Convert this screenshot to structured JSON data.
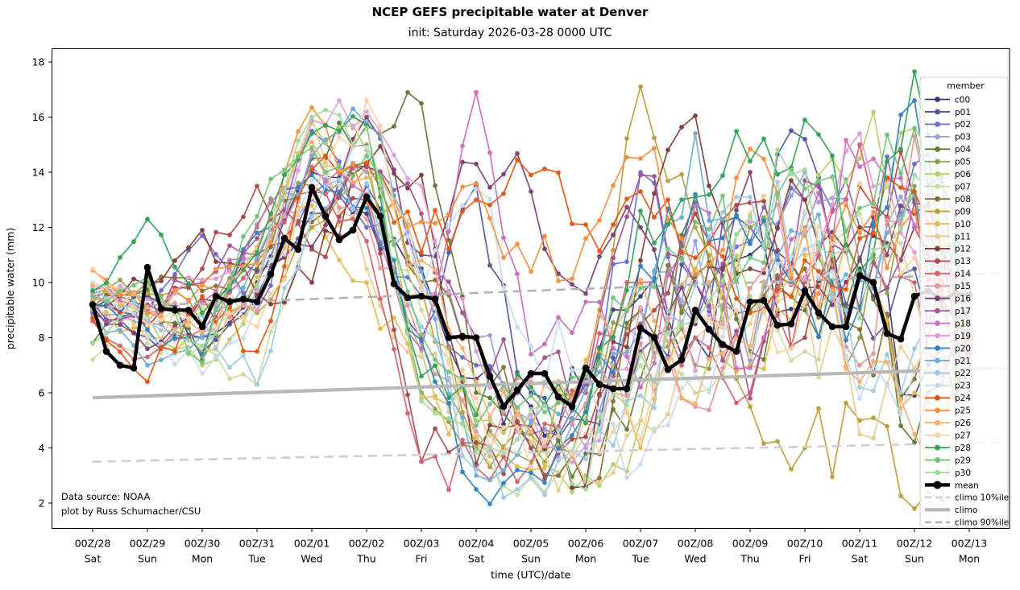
{
  "title": "NCEP GEFS precipitable water at Denver",
  "subtitle": "init: Saturday 2026-03-28 0000 UTC",
  "x_axis": {
    "label": "time (UTC)/date",
    "ticks": [
      {
        "time": "00Z/28",
        "day": "Sat"
      },
      {
        "time": "00Z/29",
        "day": "Sun"
      },
      {
        "time": "00Z/30",
        "day": "Mon"
      },
      {
        "time": "00Z/31",
        "day": "Tue"
      },
      {
        "time": "00Z/01",
        "day": "Wed"
      },
      {
        "time": "00Z/02",
        "day": "Thu"
      },
      {
        "time": "00Z/03",
        "day": "Fri"
      },
      {
        "time": "00Z/04",
        "day": "Sat"
      },
      {
        "time": "00Z/05",
        "day": "Sun"
      },
      {
        "time": "00Z/06",
        "day": "Mon"
      },
      {
        "time": "00Z/07",
        "day": "Tue"
      },
      {
        "time": "00Z/08",
        "day": "Wed"
      },
      {
        "time": "00Z/09",
        "day": "Thu"
      },
      {
        "time": "00Z/10",
        "day": "Fri"
      },
      {
        "time": "00Z/11",
        "day": "Sat"
      },
      {
        "time": "00Z/12",
        "day": "Sun"
      },
      {
        "time": "00Z/13",
        "day": "Mon"
      }
    ]
  },
  "y_axis": {
    "label": "precipitable water (mm)",
    "ticks": [
      2,
      4,
      6,
      8,
      10,
      12,
      14,
      16,
      18
    ]
  },
  "annotations": {
    "line1": "Data source: NOAA",
    "line2": "plot by Russ Schumacher/CSU"
  },
  "legend": {
    "title": "member",
    "mean_label": "mean",
    "climo10_label": "climo 10%ile",
    "climo_label": "climo",
    "climo90_label": "climo 90%ile",
    "mean_color": "#000000",
    "climo10_color": "#cfcfcf",
    "climo_color": "#b8b8b8",
    "climo90_color": "#b3b3b3"
  },
  "chart_data": {
    "type": "line",
    "title": "NCEP GEFS precipitable water at Denver",
    "subtitle": "init: Saturday 2026-03-28 0000 UTC",
    "xlabel": "time (UTC)/date",
    "ylabel": "precipitable water (mm)",
    "ylim": [
      1.1,
      18.5
    ],
    "x_start": "2026-03-28 00 UTC",
    "x_end": "2026-04-13 00 UTC",
    "x_step_hours": 6,
    "grid": false,
    "legend_position": "right",
    "mean_6hourly": [
      9.2,
      7.5,
      7.0,
      6.9,
      10.55,
      9.05,
      9.0,
      9.0,
      8.4,
      9.5,
      9.3,
      9.4,
      9.3,
      10.3,
      11.6,
      11.2,
      13.45,
      12.4,
      11.55,
      11.9,
      13.1,
      12.4,
      9.95,
      9.45,
      9.5,
      9.4,
      8.0,
      8.05,
      8.0,
      6.6,
      5.5,
      6.1,
      6.7,
      6.7,
      5.85,
      5.5,
      6.9,
      6.3,
      6.15,
      6.15,
      8.35,
      8.0,
      6.85,
      7.2,
      9.0,
      8.3,
      7.75,
      7.5,
      9.3,
      9.35,
      8.45,
      8.5,
      9.7,
      8.9,
      8.4,
      8.4,
      10.25,
      10.0,
      8.15,
      7.95,
      9.5,
      9.7,
      9.4,
      9.6,
      9.55
    ],
    "climo_lines": {
      "climo_10th_percentile": {
        "start": 3.5,
        "end": 4.2
      },
      "climo": {
        "start": 5.82,
        "end": 6.9
      },
      "climo_90th_percentile": {
        "start": 9.1,
        "end": 10.35
      }
    },
    "members_daily_00Z": [
      {
        "name": "c00",
        "color": "#393b79",
        "values": [
          9.0,
          9.5,
          8.0,
          10.0,
          14.0,
          12.5,
          10.5,
          6.5,
          5.5,
          6.0,
          9.5,
          8.0,
          11.0,
          9.0,
          10.5,
          5.9,
          8.0
        ]
      },
      {
        "name": "p01",
        "color": "#5254a3",
        "values": [
          9.3,
          8.0,
          7.5,
          9.5,
          12.5,
          13.5,
          8.0,
          13.5,
          6.0,
          5.0,
          7.5,
          10.0,
          12.0,
          15.2,
          9.0,
          10.5,
          7.5
        ]
      },
      {
        "name": "p02",
        "color": "#6b6ecf",
        "values": [
          9.5,
          9.0,
          11.7,
          9.0,
          15.5,
          12.0,
          9.5,
          7.0,
          4.5,
          6.5,
          14.0,
          8.5,
          11.5,
          13.0,
          12.0,
          14.3,
          9.0
        ]
      },
      {
        "name": "p03",
        "color": "#9c9ede",
        "values": [
          8.8,
          8.5,
          8.0,
          11.0,
          13.0,
          14.0,
          10.0,
          8.0,
          5.0,
          4.0,
          8.0,
          11.5,
          7.0,
          14.0,
          10.8,
          12.1,
          8.5
        ]
      },
      {
        "name": "p04",
        "color": "#637939",
        "values": [
          7.8,
          9.7,
          7.2,
          10.5,
          14.5,
          15.7,
          16.5,
          6.0,
          4.2,
          3.8,
          6.5,
          12.9,
          7.5,
          9.0,
          10.9,
          4.2,
          9.7
        ]
      },
      {
        "name": "p05",
        "color": "#8ca252",
        "values": [
          9.6,
          10.0,
          8.5,
          12.0,
          13.5,
          15.0,
          6.0,
          4.0,
          3.5,
          5.5,
          9.0,
          7.0,
          12.0,
          10.0,
          8.0,
          13.5,
          7.0
        ]
      },
      {
        "name": "p06",
        "color": "#b5cf6b",
        "values": [
          9.4,
          8.8,
          7.0,
          9.8,
          15.8,
          14.8,
          7.5,
          5.0,
          4.5,
          3.0,
          5.0,
          10.5,
          9.5,
          12.5,
          14.5,
          15.6,
          8.0
        ]
      },
      {
        "name": "p07",
        "color": "#cedb9c",
        "values": [
          7.2,
          7.8,
          7.7,
          6.3,
          12.0,
          13.0,
          9.0,
          4.3,
          3.0,
          4.5,
          7.0,
          6.0,
          8.5,
          7.5,
          12.5,
          9.5,
          7.0
        ]
      },
      {
        "name": "p08",
        "color": "#8c6d31",
        "values": [
          9.1,
          9.8,
          9.7,
          11.0,
          12.2,
          14.2,
          10.0,
          8.0,
          4.0,
          2.6,
          9.0,
          10.2,
          9.0,
          10.5,
          8.3,
          6.5,
          9.7
        ]
      },
      {
        "name": "p09",
        "color": "#bd9e39",
        "values": [
          9.3,
          9.6,
          9.9,
          8.9,
          12.0,
          14.2,
          9.8,
          4.1,
          4.5,
          6.8,
          17.1,
          12.0,
          5.5,
          4.0,
          5.0,
          1.8,
          4.5
        ]
      },
      {
        "name": "p10",
        "color": "#e7ba52",
        "values": [
          8.9,
          8.2,
          7.5,
          10.2,
          12.8,
          10.0,
          5.8,
          4.4,
          3.2,
          7.2,
          4.0,
          10.5,
          7.0,
          11.0,
          10.3,
          6.0,
          7.0
        ]
      },
      {
        "name": "p11",
        "color": "#e7cb94",
        "values": [
          10.45,
          8.0,
          9.0,
          9.3,
          16.0,
          10.5,
          7.3,
          5.4,
          4.2,
          2.8,
          5.0,
          8.0,
          12.5,
          9.5,
          4.5,
          6.9,
          6.0
        ]
      },
      {
        "name": "p12",
        "color": "#843c39",
        "values": [
          9.2,
          9.9,
          11.9,
          9.6,
          10.0,
          14.3,
          13.9,
          3.4,
          4.8,
          2.6,
          10.8,
          16.05,
          10.5,
          13.0,
          12.0,
          12.0,
          7.5
        ]
      },
      {
        "name": "p13",
        "color": "#ad494a",
        "values": [
          9.0,
          8.4,
          10.5,
          13.5,
          11.2,
          13.0,
          3.5,
          4.2,
          4.0,
          4.4,
          8.5,
          12.5,
          12.9,
          8.0,
          13.5,
          13.0,
          7.0
        ]
      },
      {
        "name": "p14",
        "color": "#d6616b",
        "values": [
          8.6,
          7.3,
          8.3,
          10.8,
          13.3,
          11.5,
          3.5,
          3.3,
          3.4,
          6.0,
          10.0,
          8.0,
          6.0,
          10.0,
          15.0,
          10.0,
          6.0
        ]
      },
      {
        "name": "p15",
        "color": "#e7969c",
        "values": [
          9.35,
          8.6,
          9.2,
          9.0,
          14.8,
          12.3,
          7.8,
          4.6,
          6.4,
          5.6,
          7.8,
          5.5,
          9.8,
          12.0,
          7.0,
          15.3,
          7.6
        ]
      },
      {
        "name": "p16",
        "color": "#7b4173",
        "values": [
          9.15,
          7.6,
          9.4,
          10.4,
          11.3,
          16.0,
          11.0,
          14.3,
          13.3,
          9.6,
          12.0,
          8.5,
          14.0,
          9.8,
          10.8,
          12.5,
          9.0
        ]
      },
      {
        "name": "p17",
        "color": "#a55194",
        "values": [
          8.9,
          9.2,
          10.0,
          11.6,
          13.2,
          14.2,
          12.5,
          8.0,
          6.6,
          6.3,
          13.9,
          10.0,
          5.8,
          13.7,
          9.0,
          12.9,
          8.5
        ]
      },
      {
        "name": "p18",
        "color": "#ce6dbd",
        "values": [
          9.7,
          8.9,
          9.3,
          12.1,
          14.2,
          13.2,
          7.6,
          16.9,
          7.4,
          9.3,
          6.2,
          12.8,
          6.9,
          11.9,
          14.2,
          12.0,
          9.2
        ]
      },
      {
        "name": "p19",
        "color": "#de9ed6",
        "values": [
          9.6,
          9.4,
          10.1,
          9.7,
          15.9,
          16.2,
          13.5,
          7.5,
          5.2,
          4.1,
          9.1,
          6.8,
          12.2,
          10.2,
          15.4,
          11.1,
          8.8
        ]
      },
      {
        "name": "p20",
        "color": "#3182bd",
        "values": [
          9.2,
          8.3,
          7.4,
          11.8,
          13.9,
          12.7,
          7.9,
          2.5,
          3.1,
          5.3,
          10.6,
          13.2,
          11.4,
          9.6,
          9.1,
          16.6,
          8.2
        ]
      },
      {
        "name": "p21",
        "color": "#6baed6",
        "values": [
          9.0,
          7.0,
          8.1,
          10.9,
          14.6,
          15.8,
          10.4,
          3.0,
          4.9,
          6.1,
          8.2,
          15.4,
          7.2,
          11.7,
          10.1,
          13.2,
          9.3
        ]
      },
      {
        "name": "p22",
        "color": "#9ecae1",
        "values": [
          9.8,
          8.6,
          8.8,
          6.3,
          12.4,
          13.6,
          8.4,
          3.2,
          2.9,
          3.6,
          5.9,
          9.9,
          13.1,
          11.2,
          6.2,
          7.6,
          8.4
        ]
      },
      {
        "name": "p23",
        "color": "#c6dbef",
        "values": [
          10.0,
          8.1,
          6.7,
          9.2,
          13.7,
          14.9,
          9.7,
          13.4,
          7.7,
          6.9,
          3.4,
          6.6,
          9.4,
          12.6,
          5.8,
          6.8,
          9.8
        ]
      },
      {
        "name": "p24",
        "color": "#e6550d",
        "values": [
          8.7,
          6.4,
          9.5,
          7.5,
          14.1,
          14.35,
          11.1,
          13.0,
          13.9,
          12.1,
          13.3,
          10.9,
          8.9,
          10.8,
          11.6,
          13.3,
          7.4
        ]
      },
      {
        "name": "p25",
        "color": "#fd8d3c",
        "values": [
          10.45,
          8.9,
          9.9,
          10.7,
          16.35,
          12.9,
          12.2,
          13.6,
          10.4,
          11.6,
          14.5,
          10.3,
          14.85,
          9.2,
          11.8,
          12.6,
          8.6
        ]
      },
      {
        "name": "p26",
        "color": "#fdae6b",
        "values": [
          9.9,
          9.1,
          8.2,
          11.3,
          15.1,
          13.8,
          10.8,
          6.4,
          4.6,
          7.0,
          10.1,
          5.6,
          7.7,
          11.9,
          6.4,
          4.5,
          7.9
        ]
      },
      {
        "name": "p27",
        "color": "#fdd0a2",
        "values": [
          10.5,
          8.45,
          9.1,
          8.4,
          13.1,
          16.6,
          9.9,
          5.8,
          3.3,
          5.1,
          4.3,
          8.8,
          7.3,
          9.3,
          13.6,
          10.9,
          9.1
        ]
      },
      {
        "name": "p28",
        "color": "#31a354",
        "values": [
          9.7,
          12.3,
          8.9,
          11.1,
          15.4,
          15.7,
          6.6,
          5.2,
          6.2,
          4.9,
          12.6,
          13.1,
          14.4,
          15.9,
          10.4,
          17.65,
          9.4
        ]
      },
      {
        "name": "p29",
        "color": "#74c476",
        "values": [
          9.5,
          10.2,
          7.1,
          12.4,
          14.9,
          14.6,
          8.1,
          4.8,
          5.9,
          6.6,
          9.8,
          12.2,
          10.9,
          13.4,
          12.7,
          15.6,
          8.9
        ]
      },
      {
        "name": "p30",
        "color": "#a1d99b",
        "values": [
          7.8,
          9.9,
          7.7,
          9.9,
          16.0,
          15.6,
          5.7,
          3.9,
          5.4,
          2.5,
          7.4,
          8.6,
          12.4,
          14.1,
          8.7,
          13.9,
          9.5
        ]
      }
    ]
  }
}
